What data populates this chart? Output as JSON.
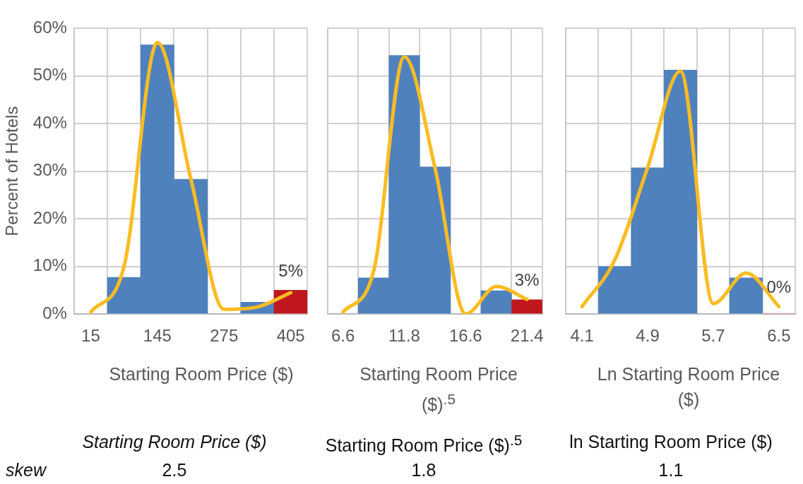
{
  "chart_data": [
    {
      "type": "bar",
      "categories": [
        "15",
        null,
        "145",
        null,
        "275",
        null,
        "405"
      ],
      "ylabel": "Percent of Hotels",
      "xlabel": "Starting Room Price ($)",
      "ylim": [
        0,
        60
      ],
      "yticks": [
        {
          "value": 0,
          "label": "0%"
        },
        {
          "value": 10,
          "label": "10%"
        },
        {
          "value": 20,
          "label": "20%"
        },
        {
          "value": 30,
          "label": "30%"
        },
        {
          "value": 40,
          "label": "40%"
        },
        {
          "value": 50,
          "label": "50%"
        },
        {
          "value": 60,
          "label": "60%"
        }
      ],
      "grid": true,
      "marker": "none",
      "series": [
        {
          "type": "bar",
          "colors": [
            "#4f81bd",
            "#4f81bd",
            "#4f81bd",
            "#4f81bd",
            "#4f81bd",
            "#4f81bd",
            "#c0171e"
          ],
          "values": [
            0,
            7.7,
            56.5,
            28.3,
            0,
            2.5,
            5
          ],
          "value_labels": [
            null,
            null,
            null,
            null,
            null,
            null,
            "5%"
          ]
        },
        {
          "type": "line",
          "color": "#fbbc22",
          "values": [
            0.4,
            10,
            57,
            28.5,
            1,
            1.5,
            4.5
          ]
        }
      ]
    },
    {
      "type": "bar",
      "categories": [
        "6.6",
        null,
        "11.8",
        null,
        "16.6",
        null,
        "21.4"
      ],
      "xlabel": "Starting Room Price ($)$^{.5}$",
      "ylim": [
        0,
        60
      ],
      "yticks": [
        0,
        10,
        20,
        30,
        40,
        50,
        60
      ],
      "tick_labels": "x",
      "grid": true,
      "marker": "none",
      "series": [
        {
          "type": "bar",
          "colors": [
            "#4f81bd",
            "#4f81bd",
            "#4f81bd",
            "#4f81bd",
            "#4f81bd",
            "#4f81bd",
            "#c0171e"
          ],
          "values": [
            0,
            7.6,
            54.3,
            30.9,
            0,
            4.9,
            3
          ],
          "value_labels": [
            null,
            null,
            null,
            null,
            null,
            null,
            "3%"
          ]
        },
        {
          "type": "line",
          "color": "#fbbc22",
          "values": [
            0.4,
            9,
            54,
            30.7,
            0,
            5.8,
            3.1
          ]
        }
      ]
    },
    {
      "type": "bar",
      "categories": [
        "4.1",
        null,
        "4.9",
        null,
        "5.7",
        null,
        "6.5"
      ],
      "xlabel": "Ln Starting Room Price ($)",
      "ylim": [
        0,
        60
      ],
      "yticks": [
        0,
        10,
        20,
        30,
        40,
        50,
        60
      ],
      "tick_labels": "x",
      "grid": true,
      "marker": "none",
      "series": [
        {
          "type": "bar",
          "colors": [
            "#4f81bd",
            "#4f81bd",
            "#4f81bd",
            "#4f81bd",
            "#4f81bd",
            "#4f81bd",
            "#c0171e"
          ],
          "values": [
            0,
            10,
            30.7,
            51.2,
            0,
            7.6,
            0
          ],
          "value_labels": [
            null,
            null,
            null,
            null,
            null,
            null,
            "0%"
          ]
        },
        {
          "type": "line",
          "color": "#fbbc22",
          "values": [
            1.6,
            11.4,
            30.8,
            51,
            2.2,
            8.6,
            1.6
          ]
        }
      ]
    },
    {
      "type": "other",
      "annotations": [
        "Starting Room Price ($)",
        "Starting Room Price ($)$^{.5}$",
        "ln Starting Room Price ($)",
        "skew",
        "2.5",
        "1.8",
        "1.1"
      ]
    }
  ]
}
